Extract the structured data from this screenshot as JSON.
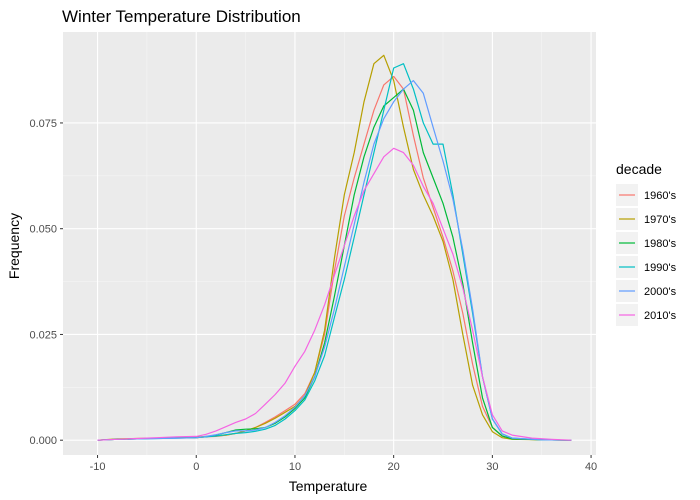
{
  "chart_data": {
    "type": "line",
    "title": "Winter Temperature  Distribution",
    "xlabel": "Temperature",
    "ylabel": "Frequency",
    "xlim": [
      -13.5,
      40.5
    ],
    "ylim": [
      -0.0035,
      0.0965
    ],
    "x_ticks": [
      {
        "value": -10,
        "label": "-10"
      },
      {
        "value": 0,
        "label": "0"
      },
      {
        "value": 10,
        "label": "10"
      },
      {
        "value": 20,
        "label": "20"
      },
      {
        "value": 30,
        "label": "30"
      },
      {
        "value": 40,
        "label": "40"
      }
    ],
    "y_ticks": [
      {
        "value": 0,
        "label": "0.000"
      },
      {
        "value": 0.025,
        "label": "0.025"
      },
      {
        "value": 0.05,
        "label": "0.050"
      },
      {
        "value": 0.075,
        "label": "0.075"
      }
    ],
    "legend": {
      "title": "decade",
      "position": "right"
    },
    "grid": true,
    "background": "#ebebeb",
    "series": [
      {
        "name": "1960's",
        "color": "#F8766D",
        "points": [
          [
            -10,
            0
          ],
          [
            -8,
            0.0002
          ],
          [
            -6,
            0.0003
          ],
          [
            -4,
            0.0005
          ],
          [
            -2,
            0.0006
          ],
          [
            0,
            0.0006
          ],
          [
            1,
            0.0008
          ],
          [
            2,
            0.0009
          ],
          [
            3,
            0.0012
          ],
          [
            4,
            0.0016
          ],
          [
            5,
            0.0022
          ],
          [
            6,
            0.003
          ],
          [
            7,
            0.0042
          ],
          [
            8,
            0.0055
          ],
          [
            9,
            0.007
          ],
          [
            10,
            0.0085
          ],
          [
            11,
            0.011
          ],
          [
            12,
            0.016
          ],
          [
            13,
            0.025
          ],
          [
            14,
            0.04
          ],
          [
            15,
            0.053
          ],
          [
            16,
            0.062
          ],
          [
            17,
            0.07
          ],
          [
            18,
            0.078
          ],
          [
            19,
            0.084
          ],
          [
            20,
            0.086
          ],
          [
            21,
            0.083
          ],
          [
            22,
            0.072
          ],
          [
            23,
            0.062
          ],
          [
            24,
            0.055
          ],
          [
            25,
            0.048
          ],
          [
            26,
            0.04
          ],
          [
            27,
            0.03
          ],
          [
            28,
            0.018
          ],
          [
            29,
            0.008
          ],
          [
            30,
            0.003
          ],
          [
            31,
            0.001
          ],
          [
            32,
            0.0003
          ],
          [
            35,
            0.0001
          ],
          [
            38,
            0
          ]
        ]
      },
      {
        "name": "1970's",
        "color": "#B79F00",
        "points": [
          [
            -10,
            0
          ],
          [
            -8,
            0.0003
          ],
          [
            -6,
            0.0004
          ],
          [
            -4,
            0.0005
          ],
          [
            -2,
            0.0006
          ],
          [
            0,
            0.0007
          ],
          [
            1,
            0.0009
          ],
          [
            2,
            0.001
          ],
          [
            3,
            0.0012
          ],
          [
            4,
            0.0016
          ],
          [
            5,
            0.0022
          ],
          [
            6,
            0.003
          ],
          [
            7,
            0.004
          ],
          [
            8,
            0.0052
          ],
          [
            9,
            0.0066
          ],
          [
            10,
            0.008
          ],
          [
            11,
            0.0105
          ],
          [
            12,
            0.016
          ],
          [
            13,
            0.026
          ],
          [
            14,
            0.043
          ],
          [
            15,
            0.058
          ],
          [
            16,
            0.068
          ],
          [
            17,
            0.08
          ],
          [
            18,
            0.089
          ],
          [
            19,
            0.091
          ],
          [
            20,
            0.085
          ],
          [
            21,
            0.074
          ],
          [
            22,
            0.064
          ],
          [
            23,
            0.058
          ],
          [
            24,
            0.053
          ],
          [
            25,
            0.047
          ],
          [
            26,
            0.038
          ],
          [
            27,
            0.025
          ],
          [
            28,
            0.013
          ],
          [
            29,
            0.006
          ],
          [
            30,
            0.002
          ],
          [
            31,
            0.0006
          ],
          [
            32,
            0.0002
          ],
          [
            35,
            0.0001
          ],
          [
            38,
            0
          ]
        ]
      },
      {
        "name": "1980's",
        "color": "#00BA38",
        "points": [
          [
            -10,
            0
          ],
          [
            -8,
            0.0002
          ],
          [
            -6,
            0.0003
          ],
          [
            -4,
            0.0005
          ],
          [
            -2,
            0.0006
          ],
          [
            0,
            0.0006
          ],
          [
            1,
            0.0008
          ],
          [
            2,
            0.0012
          ],
          [
            3,
            0.0018
          ],
          [
            4,
            0.0024
          ],
          [
            5,
            0.0026
          ],
          [
            6,
            0.0027
          ],
          [
            7,
            0.003
          ],
          [
            8,
            0.004
          ],
          [
            9,
            0.0055
          ],
          [
            10,
            0.0075
          ],
          [
            11,
            0.01
          ],
          [
            12,
            0.015
          ],
          [
            13,
            0.023
          ],
          [
            14,
            0.034
          ],
          [
            15,
            0.046
          ],
          [
            16,
            0.058
          ],
          [
            17,
            0.067
          ],
          [
            18,
            0.074
          ],
          [
            19,
            0.079
          ],
          [
            20,
            0.081
          ],
          [
            21,
            0.083
          ],
          [
            22,
            0.078
          ],
          [
            23,
            0.068
          ],
          [
            24,
            0.062
          ],
          [
            25,
            0.056
          ],
          [
            26,
            0.048
          ],
          [
            27,
            0.037
          ],
          [
            28,
            0.023
          ],
          [
            29,
            0.01
          ],
          [
            30,
            0.003
          ],
          [
            31,
            0.001
          ],
          [
            32,
            0.0003
          ],
          [
            35,
            0.0001
          ],
          [
            38,
            0
          ]
        ]
      },
      {
        "name": "1990's",
        "color": "#00BFC4",
        "points": [
          [
            -10,
            0
          ],
          [
            -8,
            0.0002
          ],
          [
            -6,
            0.0003
          ],
          [
            -4,
            0.0004
          ],
          [
            -2,
            0.0005
          ],
          [
            0,
            0.0006
          ],
          [
            1,
            0.0008
          ],
          [
            2,
            0.001
          ],
          [
            3,
            0.0013
          ],
          [
            4,
            0.0016
          ],
          [
            5,
            0.0018
          ],
          [
            6,
            0.0021
          ],
          [
            7,
            0.0026
          ],
          [
            8,
            0.0035
          ],
          [
            9,
            0.005
          ],
          [
            10,
            0.007
          ],
          [
            11,
            0.0095
          ],
          [
            12,
            0.014
          ],
          [
            13,
            0.02
          ],
          [
            14,
            0.029
          ],
          [
            15,
            0.038
          ],
          [
            16,
            0.048
          ],
          [
            17,
            0.058
          ],
          [
            18,
            0.068
          ],
          [
            19,
            0.078
          ],
          [
            20,
            0.088
          ],
          [
            21,
            0.089
          ],
          [
            22,
            0.083
          ],
          [
            23,
            0.075
          ],
          [
            24,
            0.07
          ],
          [
            25,
            0.07
          ],
          [
            26,
            0.058
          ],
          [
            27,
            0.044
          ],
          [
            28,
            0.03
          ],
          [
            29,
            0.015
          ],
          [
            30,
            0.005
          ],
          [
            31,
            0.0015
          ],
          [
            32,
            0.0005
          ],
          [
            35,
            0.0001
          ],
          [
            38,
            0
          ]
        ]
      },
      {
        "name": "2000's",
        "color": "#619CFF",
        "points": [
          [
            -10,
            0
          ],
          [
            -8,
            0.0002
          ],
          [
            -6,
            0.0003
          ],
          [
            -4,
            0.0004
          ],
          [
            -2,
            0.0005
          ],
          [
            0,
            0.0006
          ],
          [
            1,
            0.0009
          ],
          [
            2,
            0.0013
          ],
          [
            3,
            0.0018
          ],
          [
            4,
            0.0022
          ],
          [
            5,
            0.0022
          ],
          [
            6,
            0.0024
          ],
          [
            7,
            0.003
          ],
          [
            8,
            0.0042
          ],
          [
            9,
            0.0058
          ],
          [
            10,
            0.0078
          ],
          [
            11,
            0.0105
          ],
          [
            12,
            0.015
          ],
          [
            13,
            0.022
          ],
          [
            14,
            0.031
          ],
          [
            15,
            0.041
          ],
          [
            16,
            0.051
          ],
          [
            17,
            0.061
          ],
          [
            18,
            0.07
          ],
          [
            19,
            0.076
          ],
          [
            20,
            0.08
          ],
          [
            21,
            0.083
          ],
          [
            22,
            0.085
          ],
          [
            23,
            0.082
          ],
          [
            24,
            0.074
          ],
          [
            25,
            0.066
          ],
          [
            26,
            0.057
          ],
          [
            27,
            0.045
          ],
          [
            28,
            0.031
          ],
          [
            29,
            0.015
          ],
          [
            30,
            0.005
          ],
          [
            31,
            0.0015
          ],
          [
            32,
            0.0005
          ],
          [
            35,
            0.0001
          ],
          [
            38,
            0
          ]
        ]
      },
      {
        "name": "2010's",
        "color": "#F564E3",
        "points": [
          [
            -10,
            0
          ],
          [
            -8,
            0.0002
          ],
          [
            -6,
            0.0004
          ],
          [
            -4,
            0.0006
          ],
          [
            -2,
            0.0008
          ],
          [
            0,
            0.0009
          ],
          [
            1,
            0.0014
          ],
          [
            2,
            0.0022
          ],
          [
            3,
            0.0032
          ],
          [
            4,
            0.0042
          ],
          [
            5,
            0.005
          ],
          [
            6,
            0.0063
          ],
          [
            7,
            0.0085
          ],
          [
            8,
            0.0108
          ],
          [
            9,
            0.0135
          ],
          [
            10,
            0.0175
          ],
          [
            11,
            0.021
          ],
          [
            12,
            0.026
          ],
          [
            13,
            0.032
          ],
          [
            14,
            0.039
          ],
          [
            15,
            0.046
          ],
          [
            16,
            0.053
          ],
          [
            17,
            0.059
          ],
          [
            18,
            0.063
          ],
          [
            19,
            0.067
          ],
          [
            20,
            0.069
          ],
          [
            21,
            0.068
          ],
          [
            22,
            0.065
          ],
          [
            23,
            0.06
          ],
          [
            24,
            0.056
          ],
          [
            25,
            0.05
          ],
          [
            26,
            0.044
          ],
          [
            27,
            0.036
          ],
          [
            28,
            0.026
          ],
          [
            29,
            0.015
          ],
          [
            30,
            0.006
          ],
          [
            31,
            0.0022
          ],
          [
            32,
            0.0012
          ],
          [
            34,
            0.0005
          ],
          [
            36,
            0.0002
          ],
          [
            38,
            0
          ]
        ]
      }
    ]
  }
}
